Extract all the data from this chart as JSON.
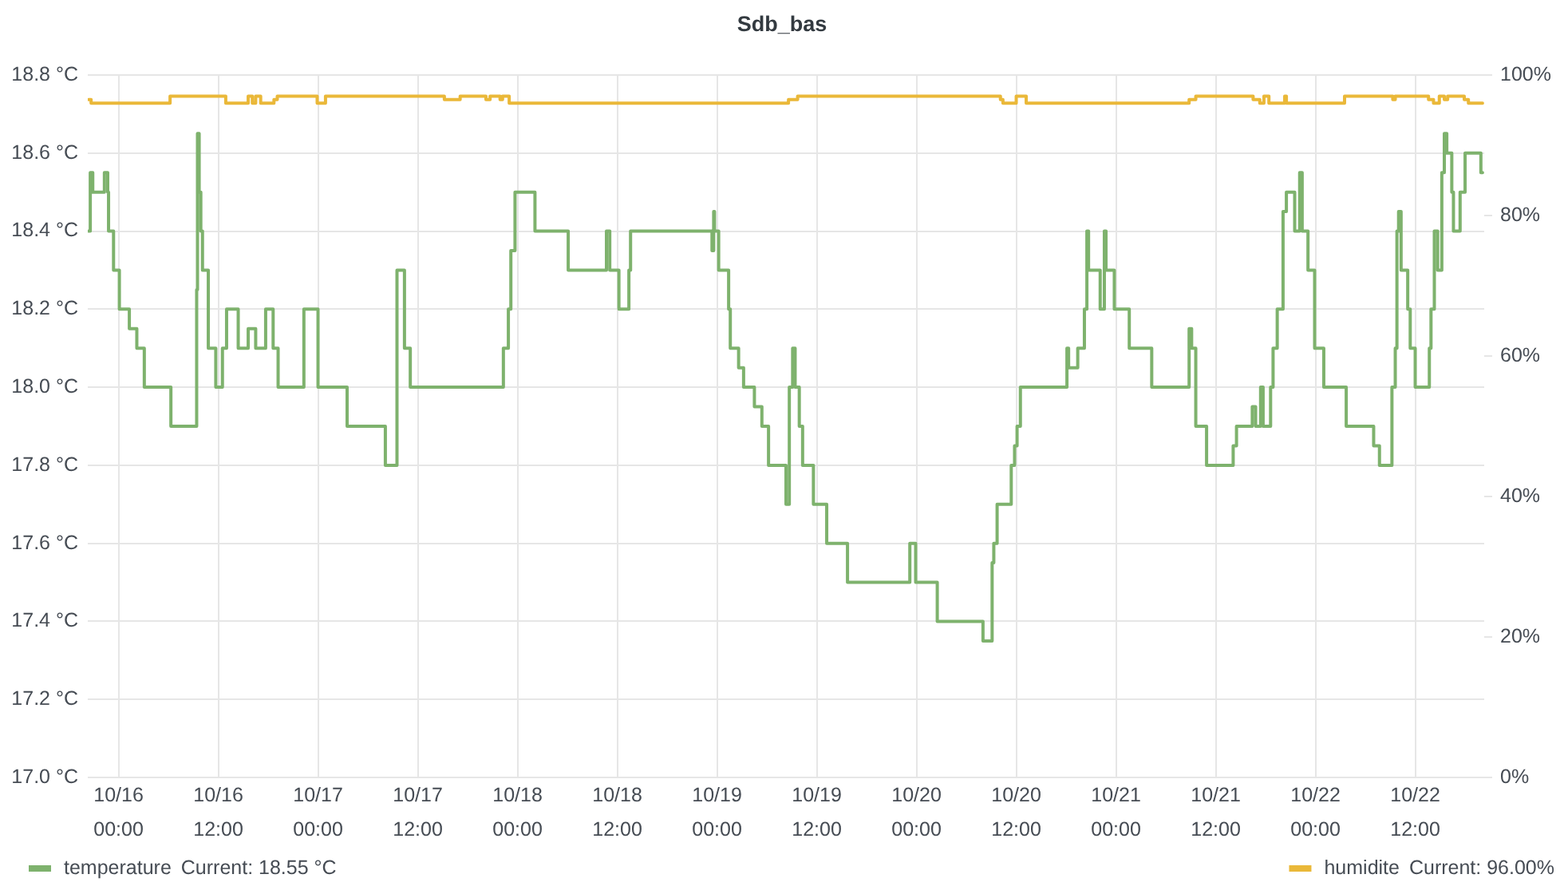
{
  "chart_data": {
    "type": "step",
    "title": "Sdb_bas",
    "xlim": [
      "--10-15T20:18",
      "--10-22T20:18"
    ],
    "xticks": [
      {
        "value": "--10-16T00:00",
        "label": "10/16 00:00"
      },
      {
        "value": "--10-16T12:00",
        "label": "10/16 12:00"
      },
      {
        "value": "--10-17T00:00",
        "label": "10/17 00:00"
      },
      {
        "value": "--10-17T12:00",
        "label": "10/17 12:00"
      },
      {
        "value": "--10-18T00:00",
        "label": "10/18 00:00"
      },
      {
        "value": "--10-18T12:00",
        "label": "10/18 12:00"
      },
      {
        "value": "--10-19T00:00",
        "label": "10/19 00:00"
      },
      {
        "value": "--10-19T12:00",
        "label": "10/19 12:00"
      },
      {
        "value": "--10-20T00:00",
        "label": "10/20 00:00"
      },
      {
        "value": "--10-20T12:00",
        "label": "10/20 12:00"
      },
      {
        "value": "--10-21T00:00",
        "label": "10/21 00:00"
      },
      {
        "value": "--10-21T12:00",
        "label": "10/21 12:00"
      },
      {
        "value": "--10-22T00:00",
        "label": "10/22 00:00"
      },
      {
        "value": "--10-22T12:00",
        "label": "10/22 12:00"
      }
    ],
    "ylim": [
      17.0,
      18.8
    ],
    "yticks": [
      {
        "value": 17.0,
        "label": "17.0 °C"
      },
      {
        "value": 17.2,
        "label": "17.2 °C"
      },
      {
        "value": 17.4,
        "label": "17.4 °C"
      },
      {
        "value": 17.6,
        "label": "17.6 °C"
      },
      {
        "value": 17.8,
        "label": "17.8 °C"
      },
      {
        "value": 18.0,
        "label": "18.0 °C"
      },
      {
        "value": 18.2,
        "label": "18.2 °C"
      },
      {
        "value": 18.4,
        "label": "18.4 °C"
      },
      {
        "value": 18.6,
        "label": "18.6 °C"
      },
      {
        "value": 18.8,
        "label": "18.8 °C"
      }
    ],
    "y2lim": [
      0,
      100
    ],
    "y2ticks": [
      {
        "value": 0,
        "label": "0%"
      },
      {
        "value": 20,
        "label": "20%"
      },
      {
        "value": 40,
        "label": "40%"
      },
      {
        "value": 60,
        "label": "60%"
      },
      {
        "value": 80,
        "label": "80%"
      },
      {
        "value": 100,
        "label": "100%"
      }
    ],
    "series": [
      {
        "name": "temperature",
        "color": "#7eb26d",
        "x": [
          "--10-15T20:24",
          "--10-15T20:36",
          "--10-15T20:54",
          "--10-15T22:18",
          "--10-15T22:42",
          "--10-15T22:48",
          "--10-15T23:24",
          "--10-16T00:06",
          "--10-16T01:18",
          "--10-16T02:12",
          "--10-16T03:06",
          "--10-16T06:18",
          "--10-16T09:24",
          "--10-16T09:30",
          "--10-16T09:42",
          "--10-16T09:54",
          "--10-16T10:06",
          "--10-16T10:48",
          "--10-16T11:42",
          "--10-16T12:30",
          "--10-16T13:00",
          "--10-16T14:24",
          "--10-16T15:36",
          "--10-16T16:30",
          "--10-16T17:42",
          "--10-16T18:36",
          "--10-16T19:12",
          "--10-16T22:18",
          "--10-17T00:00",
          "--10-17T03:30",
          "--10-17T08:06",
          "--10-17T09:30",
          "--10-17T10:24",
          "--10-17T11:06",
          "--10-17T22:18",
          "--10-17T22:54",
          "--10-17T23:12",
          "--10-17T23:42",
          "--10-18T02:06",
          "--10-18T06:06",
          "--10-18T10:42",
          "--10-18T11:06",
          "--10-18T12:12",
          "--10-18T13:24",
          "--10-18T13:36",
          "--10-18T23:24",
          "--10-18T23:36",
          "--10-18T23:42",
          "--10-19T00:12",
          "--10-19T01:24",
          "--10-19T01:36",
          "--10-19T02:36",
          "--10-19T03:12",
          "--10-19T04:30",
          "--10-19T05:24",
          "--10-19T06:12",
          "--10-19T08:18",
          "--10-19T08:42",
          "--10-19T09:06",
          "--10-19T09:24",
          "--10-19T09:54",
          "--10-19T10:18",
          "--10-19T11:36",
          "--10-19T13:12",
          "--10-19T15:42",
          "--10-19T23:12",
          "--10-19T23:54",
          "--10-20T02:30",
          "--10-20T08:00",
          "--10-20T09:06",
          "--10-20T09:18",
          "--10-20T09:42",
          "--10-20T11:24",
          "--10-20T11:48",
          "--10-20T12:06",
          "--10-20T12:30",
          "--10-20T18:06",
          "--10-20T18:18",
          "--10-20T19:24",
          "--10-20T20:12",
          "--10-20T20:30",
          "--10-20T20:42",
          "--10-20T22:06",
          "--10-20T22:36",
          "--10-20T22:48",
          "--10-20T23:48",
          "--10-21T01:36",
          "--10-21T04:18",
          "--10-21T08:48",
          "--10-21T09:06",
          "--10-21T09:36",
          "--10-21T10:54",
          "--10-21T14:06",
          "--10-21T14:30",
          "--10-21T16:24",
          "--10-21T16:48",
          "--10-21T17:24",
          "--10-21T17:42",
          "--10-21T18:36",
          "--10-21T18:54",
          "--10-21T19:24",
          "--10-21T20:06",
          "--10-21T20:30",
          "--10-21T21:30",
          "--10-21T22:06",
          "--10-21T22:24",
          "--10-21T23:06",
          "--10-21T23:54",
          "--10-22T01:00",
          "--10-22T03:42",
          "--10-22T07:00",
          "--10-22T07:42",
          "--10-22T09:12",
          "--10-22T09:36",
          "--10-22T09:48",
          "--10-22T10:00",
          "--10-22T10:18",
          "--10-22T11:06",
          "--10-22T11:24",
          "--10-22T12:00",
          "--10-22T13:42",
          "--10-22T13:54",
          "--10-22T14:18",
          "--10-22T14:42",
          "--10-22T15:12",
          "--10-22T15:30",
          "--10-22T15:48",
          "--10-22T16:24",
          "--10-22T16:36",
          "--10-22T17:24",
          "--10-22T18:00",
          "--10-22T19:54",
          "--10-22T20:06"
        ],
        "values": [
          18.4,
          18.55,
          18.5,
          18.55,
          18.5,
          18.4,
          18.3,
          18.2,
          18.15,
          18.1,
          18.0,
          17.9,
          18.25,
          18.65,
          18.5,
          18.4,
          18.3,
          18.1,
          18.0,
          18.1,
          18.2,
          18.1,
          18.15,
          18.1,
          18.2,
          18.1,
          18.0,
          18.2,
          18.0,
          17.9,
          17.8,
          18.3,
          18.1,
          18.0,
          18.1,
          18.2,
          18.35,
          18.5,
          18.4,
          18.3,
          18.4,
          18.3,
          18.2,
          18.3,
          18.4,
          18.35,
          18.45,
          18.4,
          18.3,
          18.2,
          18.1,
          18.05,
          18.0,
          17.95,
          17.9,
          17.8,
          17.7,
          18.0,
          18.1,
          18.0,
          17.9,
          17.8,
          17.7,
          17.6,
          17.5,
          17.6,
          17.5,
          17.4,
          17.35,
          17.55,
          17.6,
          17.7,
          17.8,
          17.85,
          17.9,
          18.0,
          18.1,
          18.05,
          18.1,
          18.2,
          18.4,
          18.3,
          18.2,
          18.4,
          18.3,
          18.2,
          18.1,
          18.0,
          18.15,
          18.1,
          17.9,
          17.8,
          17.85,
          17.9,
          17.95,
          17.9,
          18.0,
          17.9,
          18.0,
          18.1,
          18.2,
          18.45,
          18.5,
          18.4,
          18.55,
          18.4,
          18.3,
          18.1,
          18.0,
          17.9,
          17.85,
          17.8,
          18.0,
          18.1,
          18.4,
          18.45,
          18.3,
          18.2,
          18.1,
          18.0,
          18.1,
          18.2,
          18.4,
          18.3,
          18.55,
          18.65,
          18.6,
          18.5,
          18.4,
          18.5,
          18.6,
          18.55,
          18.55
        ]
      },
      {
        "name": "humidite",
        "color": "#eab839",
        "axis": "y2",
        "x": [
          "--10-15T20:24",
          "--10-15T20:42",
          "--10-16T06:12",
          "--10-16T12:54",
          "--10-16T15:36",
          "--10-16T16:06",
          "--10-16T16:30",
          "--10-16T17:06",
          "--10-16T18:42",
          "--10-16T19:06",
          "--10-16T23:54",
          "--10-17T00:54",
          "--10-17T15:12",
          "--10-17T17:06",
          "--10-17T20:12",
          "--10-17T20:42",
          "--10-17T21:54",
          "--10-17T22:12",
          "--10-17T23:00",
          "--10-19T08:36",
          "--10-19T09:42",
          "--10-20T10:06",
          "--10-20T10:24",
          "--10-20T12:00",
          "--10-20T13:12",
          "--10-21T08:48",
          "--10-21T09:36",
          "--10-21T16:30",
          "--10-21T17:18",
          "--10-21T17:48",
          "--10-21T18:24",
          "--10-21T20:18",
          "--10-21T20:30",
          "--10-22T03:30",
          "--10-22T09:18",
          "--10-22T09:36",
          "--10-22T13:36",
          "--10-22T14:12",
          "--10-22T14:54",
          "--10-22T15:30",
          "--10-22T15:54",
          "--10-22T17:54",
          "--10-22T18:24",
          "--10-22T20:06"
        ],
        "values": [
          96.5,
          96,
          97,
          96,
          97,
          96,
          97,
          96,
          96.5,
          97,
          96,
          97,
          96.5,
          97,
          96.5,
          97,
          96.5,
          97,
          96,
          96.5,
          97,
          96.5,
          96,
          97,
          96,
          96.5,
          97,
          96.5,
          96,
          97,
          96,
          97,
          96,
          97,
          96.5,
          97,
          96.5,
          96,
          97,
          96.5,
          97,
          96.5,
          96,
          96
        ]
      }
    ],
    "annotations": [
      "Current: 18.55 °C",
      "Current: 96.00%"
    ],
    "grid": true,
    "legend": "bottom",
    "line_style": "solid"
  }
}
